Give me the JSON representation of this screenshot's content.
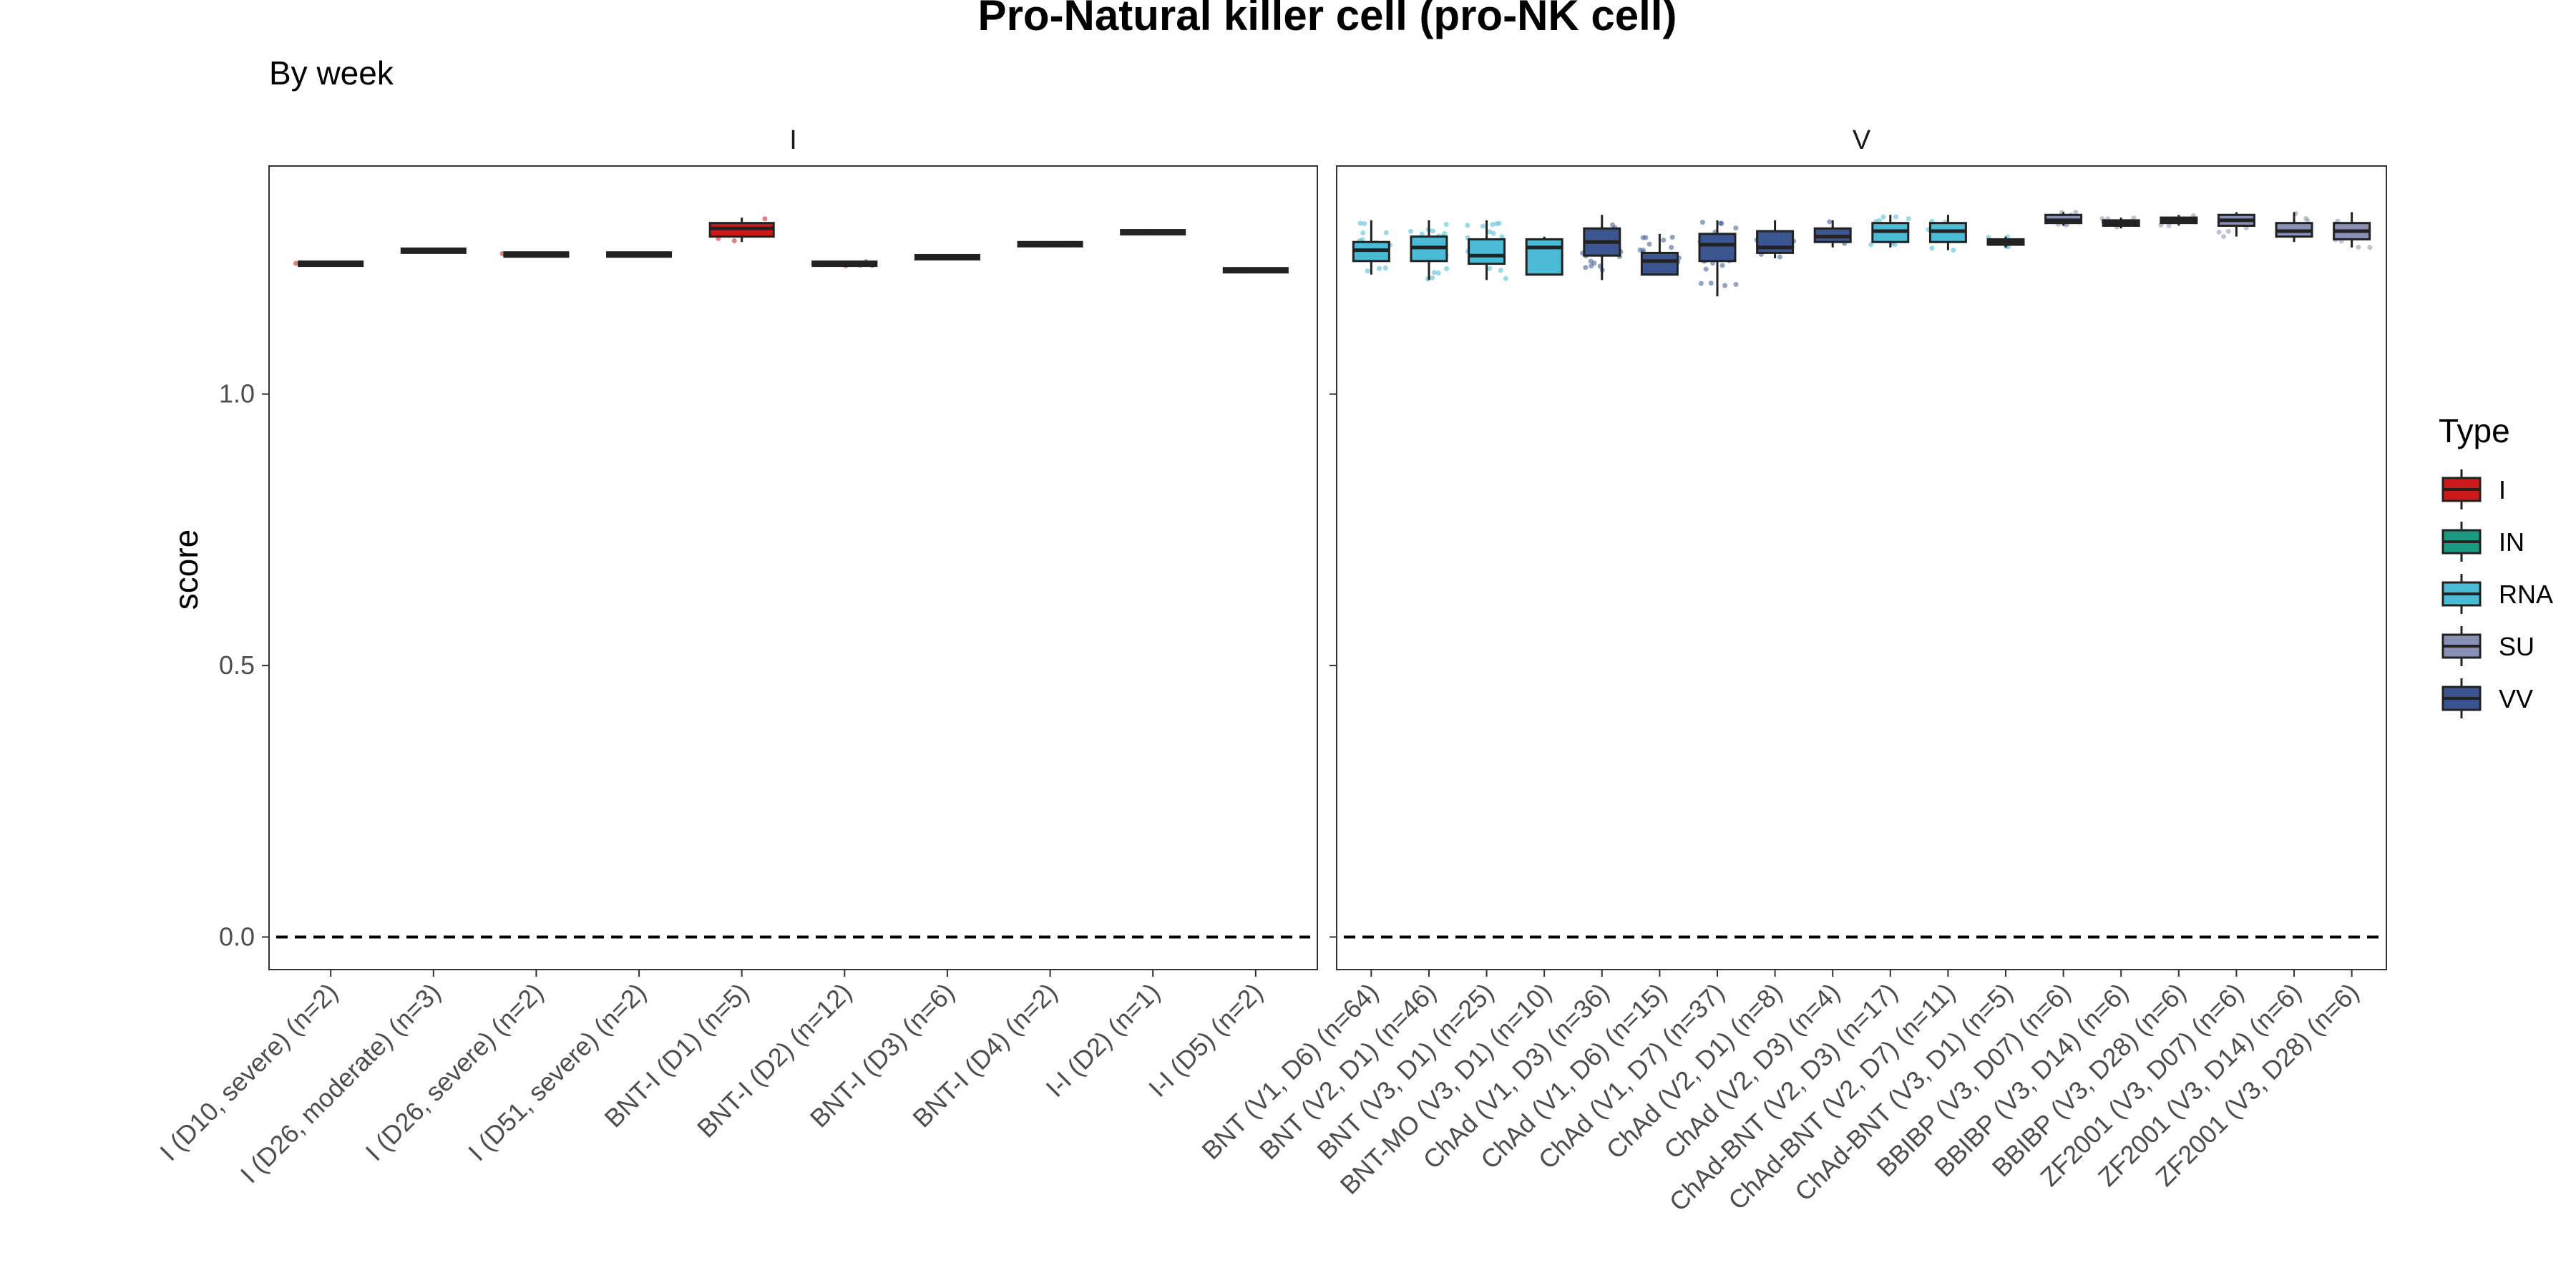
{
  "chart_data": {
    "type": "box",
    "title": "Pro-Natural killer cell (pro-NK cell)",
    "subtitle": "By week",
    "ylabel": "score",
    "ylim": [
      -0.06,
      1.42
    ],
    "yticks": [
      0.0,
      0.5,
      1.0
    ],
    "yticks_labels": [
      "0.0",
      "0.5",
      "1.0"
    ],
    "reference_line": 0.0,
    "legend": {
      "title": "Type",
      "position": "right",
      "items": [
        {
          "label": "I",
          "color": "#cc1a1a"
        },
        {
          "label": "IN",
          "color": "#1a9a80"
        },
        {
          "label": "RNA",
          "color": "#4bbad5"
        },
        {
          "label": "SU",
          "color": "#8891b5"
        },
        {
          "label": "VV",
          "color": "#3a5590"
        }
      ]
    },
    "panels": [
      {
        "strip": "I",
        "categories": [
          {
            "label": "I (D10, severe) (n=2)",
            "type": "I",
            "min": 1.238,
            "q1": 1.239,
            "median": 1.24,
            "q3": 1.241,
            "max": 1.242
          },
          {
            "label": "I (D26, moderate) (n=3)",
            "type": "I",
            "min": 1.262,
            "q1": 1.263,
            "median": 1.264,
            "q3": 1.265,
            "max": 1.266
          },
          {
            "label": "I (D26, severe) (n=2)",
            "type": "I",
            "min": 1.255,
            "q1": 1.256,
            "median": 1.257,
            "q3": 1.258,
            "max": 1.259
          },
          {
            "label": "I (D51, severe) (n=2)",
            "type": "I",
            "min": 1.255,
            "q1": 1.256,
            "median": 1.257,
            "q3": 1.258,
            "max": 1.259
          },
          {
            "label": "BNT-I (D1) (n=5)",
            "type": "I",
            "min": 1.28,
            "q1": 1.29,
            "median": 1.305,
            "q3": 1.315,
            "max": 1.325
          },
          {
            "label": "BNT-I (D2) (n=12)",
            "type": "I",
            "min": 1.236,
            "q1": 1.238,
            "median": 1.24,
            "q3": 1.242,
            "max": 1.244
          },
          {
            "label": "BNT-I (D3) (n=6)",
            "type": "I",
            "min": 1.25,
            "q1": 1.251,
            "median": 1.252,
            "q3": 1.253,
            "max": 1.254
          },
          {
            "label": "BNT-I (D4) (n=2)",
            "type": "I",
            "min": 1.274,
            "q1": 1.275,
            "median": 1.276,
            "q3": 1.277,
            "max": 1.278
          },
          {
            "label": "I-I (D2) (n=1)",
            "type": "I",
            "min": 1.296,
            "q1": 1.297,
            "median": 1.298,
            "q3": 1.299,
            "max": 1.3
          },
          {
            "label": "I-I (D5) (n=2)",
            "type": "I",
            "min": 1.226,
            "q1": 1.227,
            "median": 1.228,
            "q3": 1.229,
            "max": 1.23
          }
        ]
      },
      {
        "strip": "V",
        "categories": [
          {
            "label": "BNT (V1, D6) (n=64)",
            "type": "RNA",
            "min": 1.22,
            "q1": 1.245,
            "median": 1.265,
            "q3": 1.28,
            "max": 1.32
          },
          {
            "label": "BNT (V2, D1) (n=46)",
            "type": "RNA",
            "min": 1.21,
            "q1": 1.245,
            "median": 1.27,
            "q3": 1.29,
            "max": 1.32
          },
          {
            "label": "BNT (V3, D1) (n=25)",
            "type": "RNA",
            "min": 1.21,
            "q1": 1.24,
            "median": 1.255,
            "q3": 1.285,
            "max": 1.32
          },
          {
            "label": "BNT-MO (V3, D1) (n=10)",
            "type": "RNA",
            "min": 1.22,
            "q1": 1.22,
            "median": 1.27,
            "q3": 1.285,
            "max": 1.29
          },
          {
            "label": "ChAd (V1, D3) (n=36)",
            "type": "VV",
            "min": 1.21,
            "q1": 1.255,
            "median": 1.28,
            "q3": 1.305,
            "max": 1.33
          },
          {
            "label": "ChAd (V1, D6) (n=15)",
            "type": "VV",
            "min": 1.22,
            "q1": 1.22,
            "median": 1.245,
            "q3": 1.26,
            "max": 1.295
          },
          {
            "label": "ChAd (V1, D7) (n=37)",
            "type": "VV",
            "min": 1.18,
            "q1": 1.245,
            "median": 1.275,
            "q3": 1.295,
            "max": 1.32
          },
          {
            "label": "ChAd (V2, D1) (n=8)",
            "type": "VV",
            "min": 1.25,
            "q1": 1.26,
            "median": 1.27,
            "q3": 1.3,
            "max": 1.32
          },
          {
            "label": "ChAd (V2, D3) (n=4)",
            "type": "VV",
            "min": 1.27,
            "q1": 1.28,
            "median": 1.29,
            "q3": 1.305,
            "max": 1.32
          },
          {
            "label": "ChAd-BNT (V2, D3) (n=17)",
            "type": "RNA",
            "min": 1.27,
            "q1": 1.28,
            "median": 1.3,
            "q3": 1.315,
            "max": 1.33
          },
          {
            "label": "ChAd-BNT (V2, D7) (n=11)",
            "type": "RNA",
            "min": 1.265,
            "q1": 1.28,
            "median": 1.3,
            "q3": 1.315,
            "max": 1.33
          },
          {
            "label": "ChAd-BNT (V3, D1) (n=5)",
            "type": "RNA",
            "min": 1.27,
            "q1": 1.275,
            "median": 1.28,
            "q3": 1.285,
            "max": 1.29
          },
          {
            "label": "BBIBP (V3, D07) (n=6)",
            "type": "SU",
            "min": 1.31,
            "q1": 1.315,
            "median": 1.32,
            "q3": 1.33,
            "max": 1.335
          },
          {
            "label": "BBIBP (V3, D14) (n=6)",
            "type": "SU",
            "min": 1.305,
            "q1": 1.31,
            "median": 1.315,
            "q3": 1.32,
            "max": 1.325
          },
          {
            "label": "BBIBP (V3, D28) (n=6)",
            "type": "SU",
            "min": 1.31,
            "q1": 1.315,
            "median": 1.32,
            "q3": 1.325,
            "max": 1.33
          },
          {
            "label": "ZF2001 (V3, D07) (n=6)",
            "type": "SU",
            "min": 1.29,
            "q1": 1.31,
            "median": 1.32,
            "q3": 1.33,
            "max": 1.335
          },
          {
            "label": "ZF2001 (V3, D14) (n=6)",
            "type": "SU",
            "min": 1.28,
            "q1": 1.29,
            "median": 1.3,
            "q3": 1.315,
            "max": 1.335
          },
          {
            "label": "ZF2001 (V3, D28) (n=6)",
            "type": "SU",
            "min": 1.27,
            "q1": 1.285,
            "median": 1.3,
            "q3": 1.315,
            "max": 1.335
          }
        ]
      }
    ]
  }
}
